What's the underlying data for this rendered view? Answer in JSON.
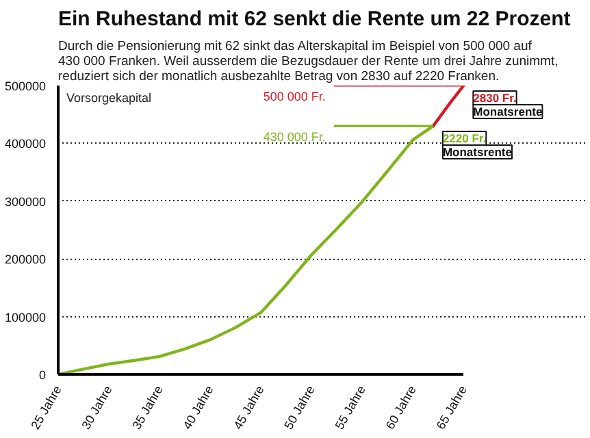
{
  "chart_data": {
    "type": "line",
    "title": "Ein Ruhestand mit 62 senkt die Rente um 22 Prozent",
    "subtitle": "Durch die Pensionierung mit 62 sinkt das Alterskapital im Beispiel von 500 000 auf 430 000 Franken. Weil ausserdem die Bezugsdauer der Rente um drei Jahre zunimmt, reduziert sich der monatlich ausbezahlte Betrag von 2830 auf 2220 Franken.",
    "series": [
      {
        "color": "#7fb51a",
        "x": [
          25,
          27.5,
          30,
          32.5,
          35,
          37.5,
          40,
          42.5,
          45,
          47.5,
          50,
          52.5,
          55,
          57.5,
          60,
          62
        ],
        "values": [
          0,
          9000,
          18000,
          24000,
          31000,
          44000,
          60000,
          81000,
          107000,
          155000,
          207000,
          252000,
          299000,
          352000,
          406000,
          430000
        ]
      },
      {
        "color": "#d71920",
        "x": [
          62,
          63.5,
          65
        ],
        "values": [
          430000,
          466000,
          500000
        ]
      }
    ],
    "ref_lines": [
      {
        "axis": "y",
        "value": 500000,
        "label": "500 000 Fr.",
        "color": "#d71920"
      },
      {
        "axis": "y",
        "value": 430000,
        "label": "430 000 Fr.",
        "color": "#7fb51a"
      }
    ],
    "annotations": [
      "Vorsorgekapital",
      {
        "text": "2830 Fr. Monatsrente",
        "x": 65,
        "y": 500000
      },
      {
        "text": "2220 Fr. Monatsrente",
        "x": 62,
        "y": 430000
      }
    ],
    "xlim": [
      25,
      65
    ],
    "xticks": [
      {
        "value": 25,
        "label": "25 Jahre"
      },
      {
        "value": 30,
        "label": "30 Jahre"
      },
      {
        "value": 35,
        "label": "35 Jahre"
      },
      {
        "value": 40,
        "label": "40 Jahre"
      },
      {
        "value": 45,
        "label": "45 Jahre"
      },
      {
        "value": 50,
        "label": "50 Jahre"
      },
      {
        "value": 55,
        "label": "55 Jahre"
      },
      {
        "value": 60,
        "label": "60 Jahre"
      },
      {
        "value": 65,
        "label": "65 Jahre"
      }
    ],
    "ylim": [
      0,
      500000
    ],
    "yticks": [
      0,
      100000,
      200000,
      300000,
      400000,
      500000
    ],
    "grid": "y",
    "line_style": "solid"
  }
}
